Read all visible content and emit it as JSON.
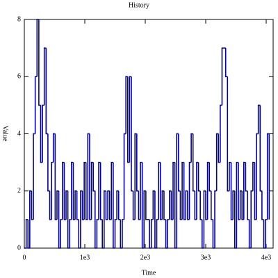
{
  "chart_data": {
    "type": "step",
    "title": "History",
    "xlabel": "Time",
    "ylabel": "Value",
    "color": "#0000a0",
    "x": [
      0,
      30,
      60,
      90,
      120,
      150,
      180,
      210,
      240,
      270,
      300,
      330,
      360,
      390,
      420,
      450,
      480,
      510,
      540,
      570,
      600,
      630,
      660,
      690,
      720,
      750,
      780,
      810,
      840,
      870,
      900,
      930,
      960,
      990,
      1020,
      1050,
      1080,
      1110,
      1140,
      1170,
      1200,
      1230,
      1260,
      1290,
      1320,
      1350,
      1380,
      1410,
      1440,
      1470,
      1500,
      1530,
      1560,
      1590,
      1620,
      1650,
      1680,
      1710,
      1740,
      1770,
      1800,
      1830,
      1860,
      1890,
      1920,
      1950,
      1980,
      2010,
      2040,
      2070,
      2100,
      2130,
      2160,
      2190,
      2220,
      2250,
      2280,
      2310,
      2340,
      2370,
      2400,
      2430,
      2460,
      2490,
      2520,
      2550,
      2580,
      2610,
      2640,
      2670,
      2700,
      2730,
      2760,
      2790,
      2820,
      2850,
      2880,
      2910,
      2940,
      2970,
      3000,
      3030,
      3060,
      3090,
      3120,
      3150,
      3180,
      3210,
      3240,
      3270,
      3300,
      3330,
      3360,
      3390,
      3420,
      3450,
      3480,
      3510,
      3540,
      3570,
      3600,
      3630,
      3660,
      3690,
      3720,
      3750,
      3780,
      3810,
      3840,
      3870,
      3900,
      3930,
      3960,
      3990,
      4020,
      4050
    ],
    "values": [
      0,
      1,
      0,
      2,
      1,
      4,
      6,
      8,
      5,
      3,
      5,
      7,
      4,
      2,
      1,
      3,
      4,
      1,
      2,
      0,
      1,
      3,
      1,
      2,
      0,
      1,
      3,
      1,
      2,
      1,
      0,
      2,
      1,
      3,
      1,
      4,
      1,
      3,
      2,
      0,
      1,
      3,
      1,
      0,
      2,
      1,
      2,
      1,
      3,
      0,
      1,
      2,
      1,
      0,
      1,
      4,
      6,
      3,
      6,
      2,
      1,
      4,
      2,
      1,
      3,
      0,
      2,
      1,
      1,
      0,
      1,
      2,
      0,
      1,
      3,
      1,
      2,
      1,
      0,
      1,
      2,
      1,
      3,
      0,
      4,
      2,
      1,
      3,
      1,
      2,
      1,
      3,
      4,
      2,
      1,
      3,
      2,
      1,
      0,
      2,
      1,
      3,
      2,
      1,
      0,
      2,
      4,
      3,
      5,
      7,
      7,
      6,
      2,
      3,
      1,
      2,
      0,
      3,
      1,
      2,
      1,
      3,
      2,
      1,
      0,
      2,
      3,
      1,
      4,
      5,
      2,
      1,
      0,
      1,
      4,
      1
    ],
    "xlim": [
      0,
      4115
    ],
    "ylim": [
      0,
      8
    ],
    "xticks": [
      0,
      {
        "value": 1000,
        "label": "1e3"
      },
      {
        "value": 2000,
        "label": "2e3"
      },
      {
        "value": 3000,
        "label": "3e3"
      },
      {
        "value": 4000,
        "label": "4e3"
      }
    ],
    "yticks": [
      0,
      2,
      4,
      6,
      8
    ]
  }
}
